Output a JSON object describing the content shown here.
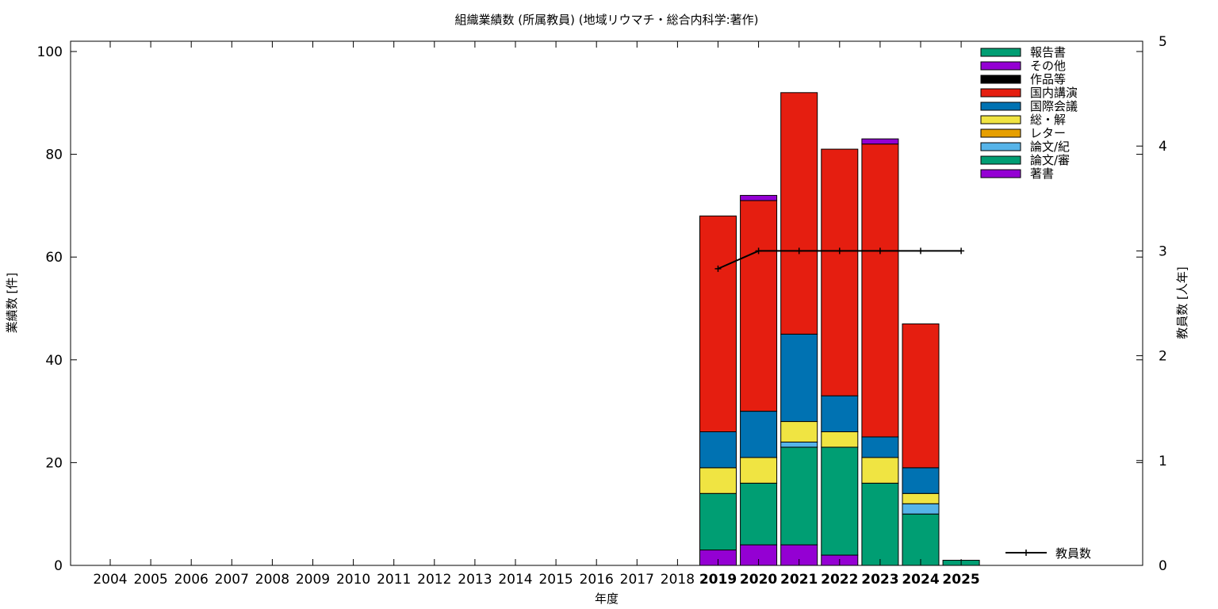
{
  "chart_data": {
    "type": "bar",
    "stacked": true,
    "title": "組織業績数 (所属教員) (地域リウマチ・総合内科学:著作)",
    "xlabel": "年度",
    "ylabel": "業績数 [件]",
    "y2label": "教員数 [人年]",
    "ylim": [
      0,
      102
    ],
    "y2lim": [
      0,
      5
    ],
    "yticks": [
      0,
      20,
      40,
      60,
      80,
      100
    ],
    "y2ticks": [
      0,
      1,
      2,
      3,
      4,
      5
    ],
    "grid": false,
    "legend_position": "top-right",
    "categories": [
      "2004",
      "2005",
      "2006",
      "2007",
      "2008",
      "2009",
      "2010",
      "2011",
      "2012",
      "2013",
      "2014",
      "2015",
      "2016",
      "2017",
      "2018",
      "2019",
      "2020",
      "2021",
      "2022",
      "2023",
      "2024",
      "2025"
    ],
    "series": [
      {
        "name": "著書",
        "color": "#9400d3",
        "values": [
          0,
          0,
          0,
          0,
          0,
          0,
          0,
          0,
          0,
          0,
          0,
          0,
          0,
          0,
          0,
          3,
          4,
          4,
          2,
          0,
          0,
          0
        ]
      },
      {
        "name": "論文/審",
        "color": "#009e73",
        "values": [
          0,
          0,
          0,
          0,
          0,
          0,
          0,
          0,
          0,
          0,
          0,
          0,
          0,
          0,
          0,
          11,
          12,
          19,
          21,
          16,
          10,
          1
        ]
      },
      {
        "name": "論文/紀",
        "color": "#56b4e9",
        "values": [
          0,
          0,
          0,
          0,
          0,
          0,
          0,
          0,
          0,
          0,
          0,
          0,
          0,
          0,
          0,
          0,
          0,
          1,
          0,
          0,
          2,
          0
        ]
      },
      {
        "name": "レター",
        "color": "#e69f00",
        "values": [
          0,
          0,
          0,
          0,
          0,
          0,
          0,
          0,
          0,
          0,
          0,
          0,
          0,
          0,
          0,
          0,
          0,
          0,
          0,
          0,
          0,
          0
        ]
      },
      {
        "name": "総・解",
        "color": "#f0e442",
        "values": [
          0,
          0,
          0,
          0,
          0,
          0,
          0,
          0,
          0,
          0,
          0,
          0,
          0,
          0,
          0,
          5,
          5,
          4,
          3,
          5,
          2,
          0
        ]
      },
      {
        "name": "国際会議",
        "color": "#0072b2",
        "values": [
          0,
          0,
          0,
          0,
          0,
          0,
          0,
          0,
          0,
          0,
          0,
          0,
          0,
          0,
          0,
          7,
          9,
          17,
          7,
          4,
          5,
          0
        ]
      },
      {
        "name": "国内講演",
        "color": "#e51e10",
        "values": [
          0,
          0,
          0,
          0,
          0,
          0,
          0,
          0,
          0,
          0,
          0,
          0,
          0,
          0,
          0,
          42,
          41,
          47,
          48,
          57,
          28,
          0
        ]
      },
      {
        "name": "作品等",
        "color": "#000000",
        "values": [
          0,
          0,
          0,
          0,
          0,
          0,
          0,
          0,
          0,
          0,
          0,
          0,
          0,
          0,
          0,
          0,
          0,
          0,
          0,
          0,
          0,
          0
        ]
      },
      {
        "name": "その他",
        "color": "#9400d3",
        "values": [
          0,
          0,
          0,
          0,
          0,
          0,
          0,
          0,
          0,
          0,
          0,
          0,
          0,
          0,
          0,
          0,
          1,
          0,
          0,
          1,
          0,
          0
        ]
      },
      {
        "name": "報告書",
        "color": "#009e73",
        "values": [
          0,
          0,
          0,
          0,
          0,
          0,
          0,
          0,
          0,
          0,
          0,
          0,
          0,
          0,
          0,
          0,
          0,
          0,
          0,
          0,
          0,
          0
        ]
      }
    ],
    "line_series": {
      "name": "教員数",
      "color": "#000000",
      "axis": "y2",
      "x": [
        "2019",
        "2020",
        "2021",
        "2022",
        "2023",
        "2024",
        "2025"
      ],
      "values": [
        2.83,
        3,
        3,
        3,
        3,
        3,
        3
      ]
    },
    "bold_tick_categories": [
      "2019",
      "2020",
      "2021",
      "2022",
      "2023",
      "2024",
      "2025"
    ]
  }
}
